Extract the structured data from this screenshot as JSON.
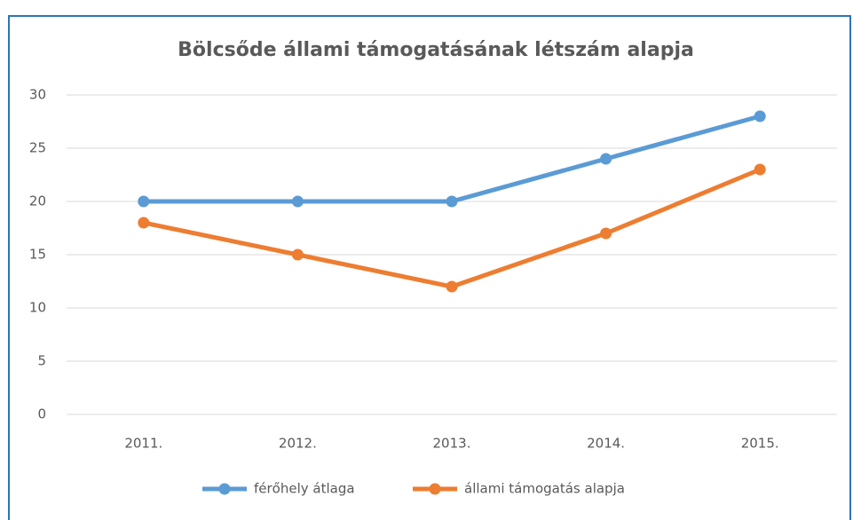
{
  "chart_data": {
    "type": "line",
    "title": "Bölcsőde állami támogatásának létszám alapja",
    "categories": [
      "2011.",
      "2012.",
      "2013.",
      "2014.",
      "2015."
    ],
    "series": [
      {
        "name": "férőhely átlaga",
        "color": "#5b9bd5",
        "values": [
          20,
          20,
          20,
          24,
          28
        ]
      },
      {
        "name": "állami támogatás alapja",
        "color": "#ed7d31",
        "values": [
          18,
          15,
          12,
          17,
          23
        ]
      }
    ],
    "ylim": [
      0,
      30
    ],
    "yticks": [
      0,
      5,
      10,
      15,
      20,
      25,
      30
    ],
    "grid": true,
    "legend": "bottom"
  }
}
